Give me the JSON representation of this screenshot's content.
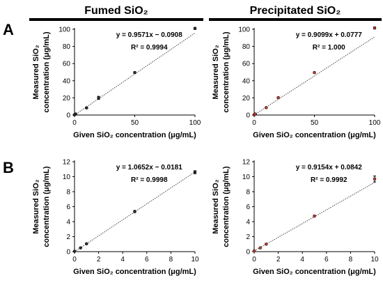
{
  "column_titles": {
    "left": "Fumed SiO₂",
    "right": "Precipitated SiO₂"
  },
  "panel_labels": {
    "top": "A",
    "bottom": "B"
  },
  "colors": {
    "fumed_marker": "#2b2b2b",
    "precipitated_marker": "#c0392b",
    "fit_line": "#444444"
  },
  "chart_data": [
    {
      "type": "scatter",
      "panel": "A",
      "column": "Fumed SiO₂",
      "xlabel": "Given SiO₂ concentration (μg/mL)",
      "ylabel_line1": "Measured SiO₂",
      "ylabel_line2": "concentration (μg/mL)",
      "xlim": [
        0,
        100
      ],
      "ylim": [
        0,
        100
      ],
      "xticks": [
        0,
        50,
        100
      ],
      "yticks": [
        0,
        20,
        40,
        60,
        80,
        100
      ],
      "fit": {
        "slope": 0.9571,
        "intercept": -0.0908
      },
      "equation_text": "y = 0.9571x − 0.0908",
      "r2_text": "R² = 0.9994",
      "points": [
        {
          "x": 0,
          "y": 0.3,
          "err": 0.5
        },
        {
          "x": 1,
          "y": 1.2,
          "err": 0.5
        },
        {
          "x": 10,
          "y": 8.3,
          "err": 0.8
        },
        {
          "x": 20,
          "y": 20.0,
          "err": 1.8
        },
        {
          "x": 50,
          "y": 49.5,
          "err": 1.0
        },
        {
          "x": 100,
          "y": 101.0,
          "err": 1.2
        }
      ]
    },
    {
      "type": "scatter",
      "panel": "A",
      "column": "Precipitated SiO₂",
      "xlabel": "Given SiO₂ concentration (μg/mL)",
      "ylabel_line1": "Measured SiO₂",
      "ylabel_line2": "concentration (μg/mL)",
      "xlim": [
        0,
        100
      ],
      "ylim": [
        0,
        100
      ],
      "xticks": [
        0,
        50,
        100
      ],
      "yticks": [
        0,
        20,
        40,
        60,
        80,
        100
      ],
      "fit": {
        "slope": 0.9099,
        "intercept": 0.0777
      },
      "equation_text": "y = 0.9099x + 0.0777",
      "r2_text": "R² = 1.000",
      "points": [
        {
          "x": 0,
          "y": 0.3,
          "err": 0.5
        },
        {
          "x": 1,
          "y": 1.2,
          "err": 0.5
        },
        {
          "x": 10,
          "y": 8.6,
          "err": 0.6
        },
        {
          "x": 20,
          "y": 20.2,
          "err": 0.8
        },
        {
          "x": 50,
          "y": 49.5,
          "err": 0.8
        },
        {
          "x": 100,
          "y": 101.5,
          "err": 1.2
        }
      ]
    },
    {
      "type": "scatter",
      "panel": "B",
      "column": "Fumed SiO₂",
      "xlabel": "Given SiO₂ concentration (μg/mL)",
      "ylabel_line1": "Measured SiO₂",
      "ylabel_line2": "concentration (μg/mL)",
      "xlim": [
        0,
        10
      ],
      "ylim": [
        0,
        12
      ],
      "xticks": [
        0,
        2,
        4,
        6,
        8,
        10
      ],
      "yticks": [
        0,
        2,
        4,
        6,
        8,
        10,
        12
      ],
      "fit": {
        "slope": 1.0652,
        "intercept": -0.0181
      },
      "equation_text": "y = 1.0652x − 0.0181",
      "r2_text": "R² = 0.9998",
      "points": [
        {
          "x": 0,
          "y": 0.05,
          "err": 0.05
        },
        {
          "x": 0.5,
          "y": 0.5,
          "err": 0.05
        },
        {
          "x": 1,
          "y": 1.05,
          "err": 0.08
        },
        {
          "x": 5,
          "y": 5.35,
          "err": 0.15
        },
        {
          "x": 10,
          "y": 10.6,
          "err": 0.2
        }
      ]
    },
    {
      "type": "scatter",
      "panel": "B",
      "column": "Precipitated SiO₂",
      "xlabel": "Given SiO₂ concentration (μg/mL)",
      "ylabel_line1": "Measured SiO₂",
      "ylabel_line2": "concentration (μg/mL)",
      "xlim": [
        0,
        10
      ],
      "ylim": [
        0,
        12
      ],
      "xticks": [
        0,
        2,
        4,
        6,
        8,
        10
      ],
      "yticks": [
        0,
        2,
        4,
        6,
        8,
        10,
        12
      ],
      "fit": {
        "slope": 0.9154,
        "intercept": 0.0842
      },
      "equation_text": "y = 0.9154x + 0.0842",
      "r2_text": "R² = 0.9992",
      "points": [
        {
          "x": 0,
          "y": 0.1,
          "err": 0.05
        },
        {
          "x": 0.5,
          "y": 0.5,
          "err": 0.05
        },
        {
          "x": 1,
          "y": 1.0,
          "err": 0.08
        },
        {
          "x": 5,
          "y": 4.75,
          "err": 0.1
        },
        {
          "x": 10,
          "y": 9.7,
          "err": 0.4
        }
      ]
    }
  ]
}
